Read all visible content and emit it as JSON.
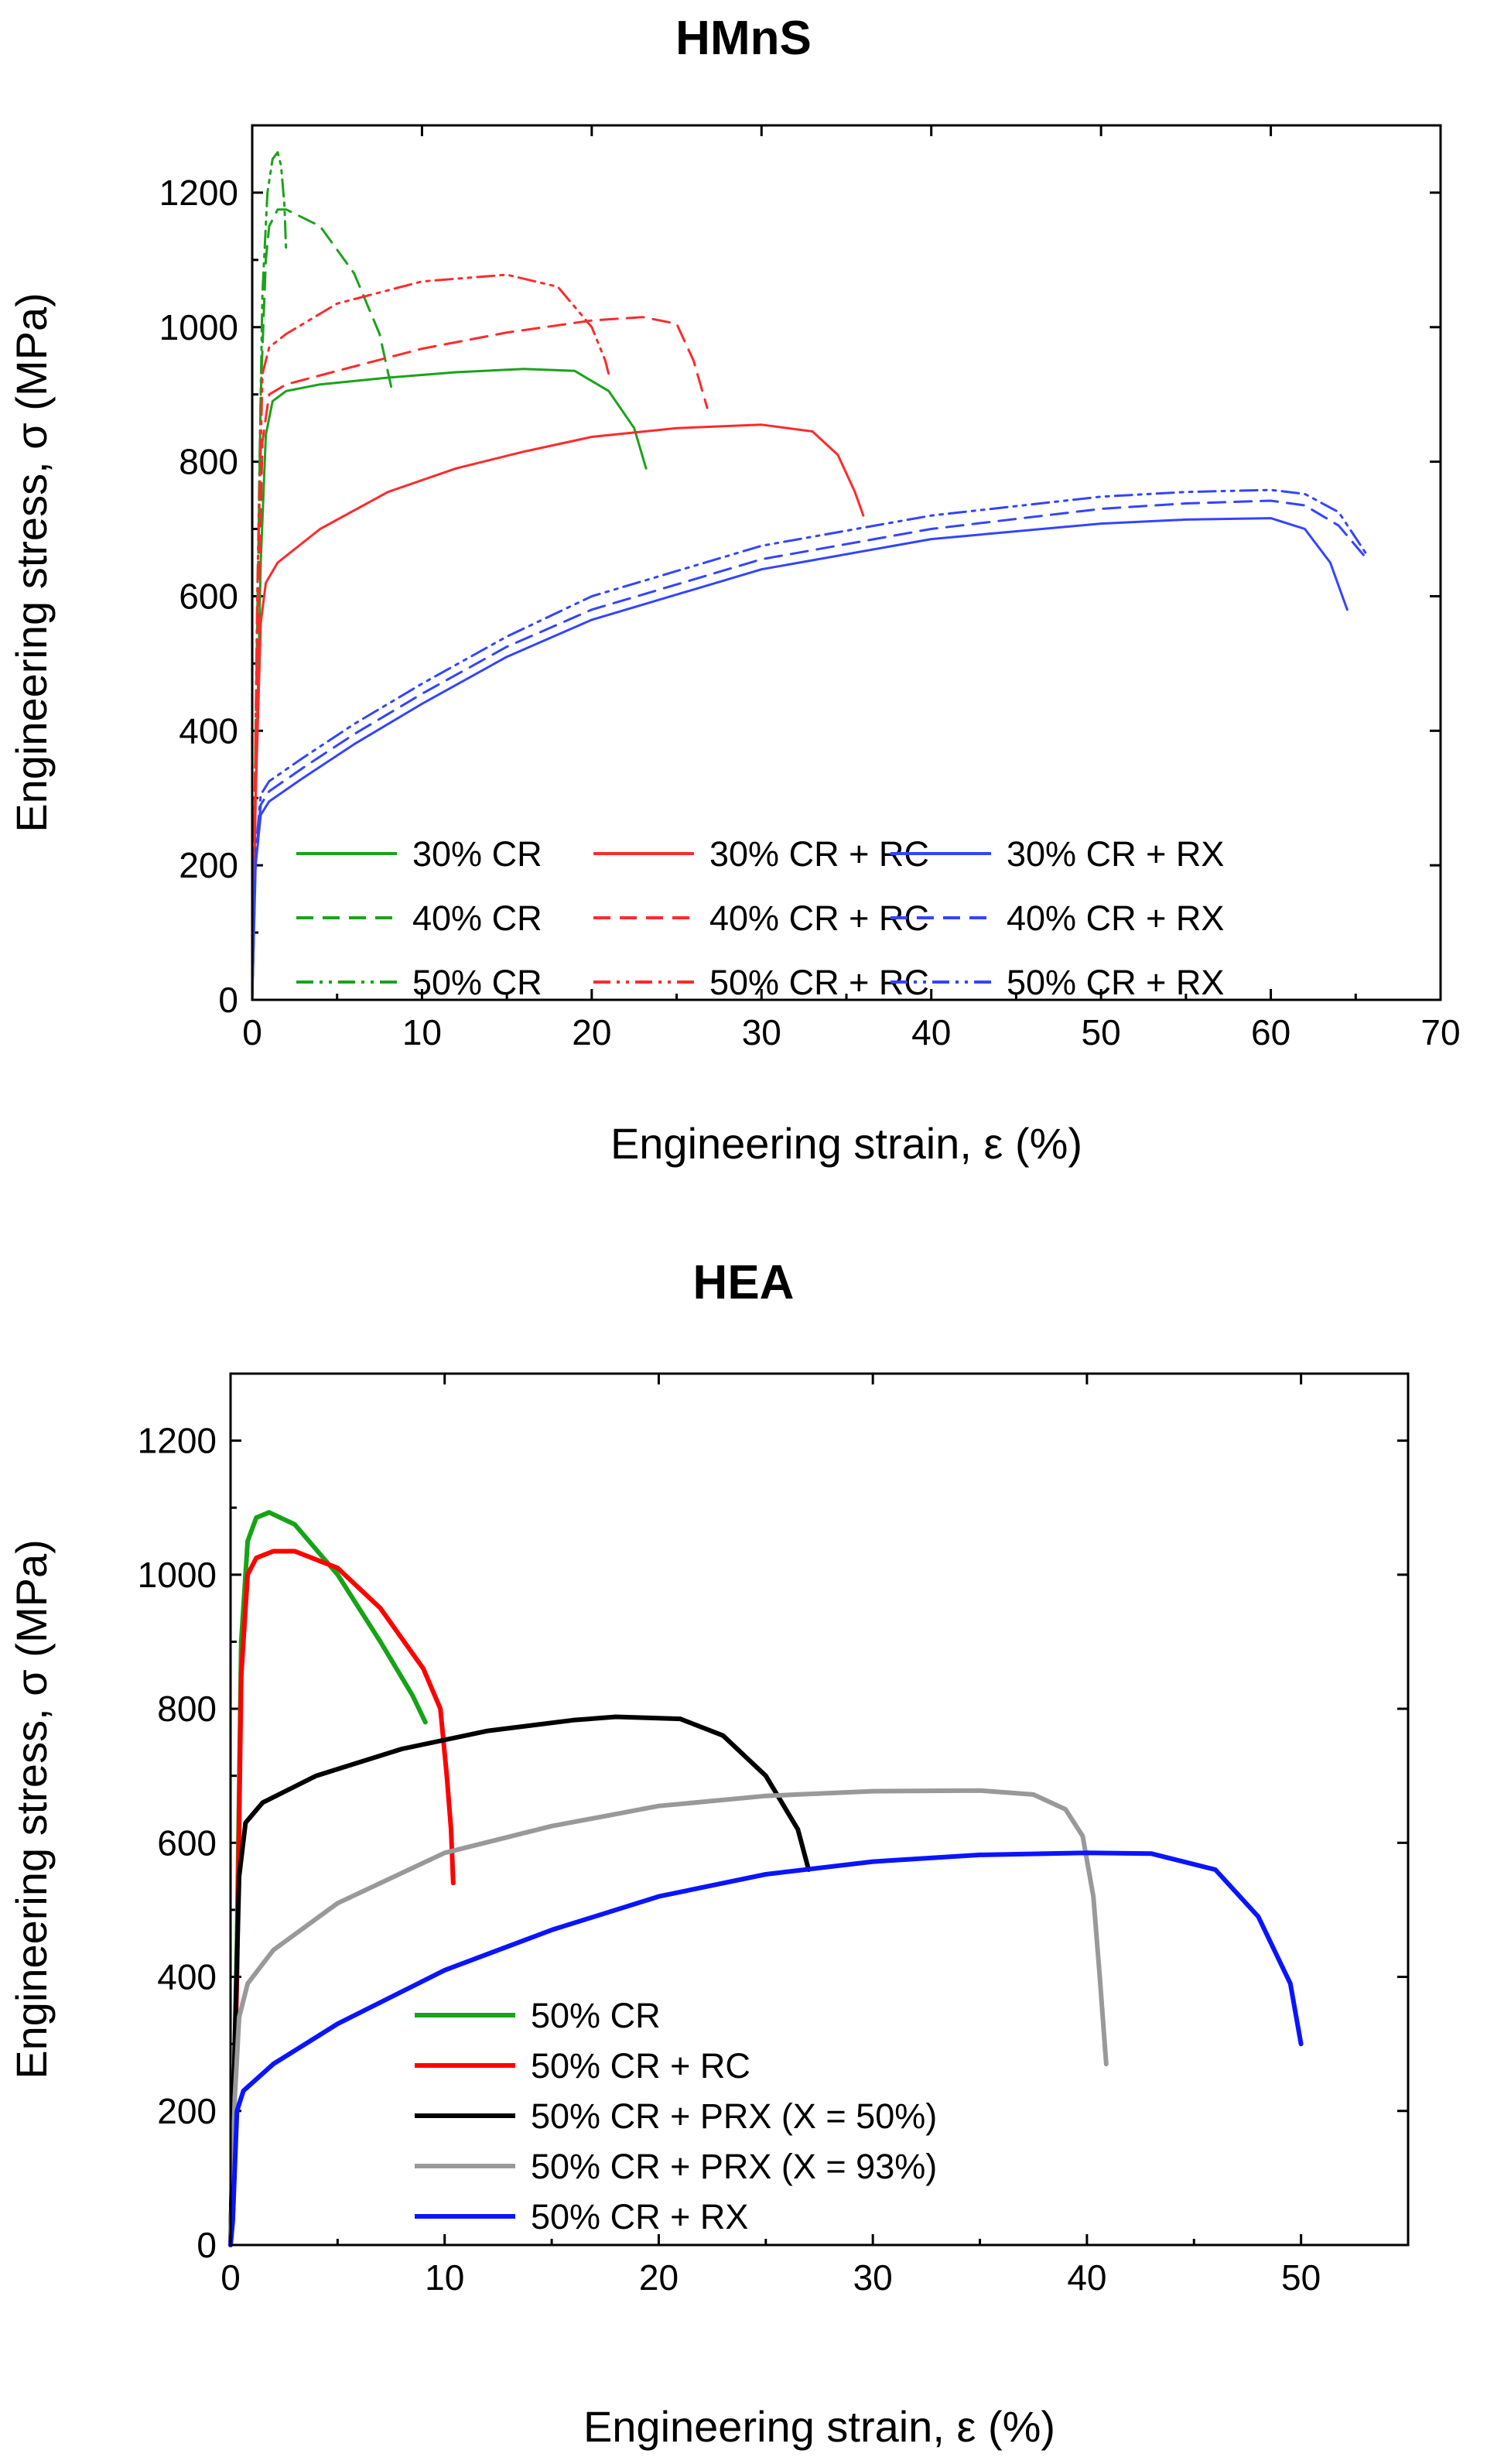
{
  "chart_data": [
    {
      "type": "line",
      "title": "HMnS",
      "xlabel": "Engineering strain, ε (%)",
      "ylabel": "Engineering stress, σ (MPa)",
      "xlim": [
        0,
        70
      ],
      "ylim": [
        0,
        1300
      ],
      "xticks": [
        0,
        10,
        20,
        30,
        40,
        50,
        60,
        70
      ],
      "yticks": [
        0,
        200,
        400,
        600,
        800,
        1000,
        1200
      ],
      "legend_layout": "3 columns, lower-left",
      "series": [
        {
          "name": "30% CR",
          "color": "#1aa31a",
          "style": "solid",
          "x": [
            0,
            0.2,
            0.5,
            0.8,
            1.2,
            2,
            4,
            8,
            12,
            16,
            19,
            21,
            22.5,
            23.2
          ],
          "y": [
            0,
            300,
            650,
            840,
            890,
            905,
            915,
            925,
            933,
            938,
            935,
            905,
            850,
            790
          ]
        },
        {
          "name": "40% CR",
          "color": "#1aa31a",
          "style": "dashed",
          "x": [
            0,
            0.2,
            0.5,
            0.8,
            1.0,
            1.5,
            2,
            4,
            6,
            7.5,
            8.2
          ],
          "y": [
            0,
            400,
            900,
            1100,
            1150,
            1175,
            1175,
            1150,
            1080,
            990,
            910
          ]
        },
        {
          "name": "50% CR",
          "color": "#1aa31a",
          "style": "dashdotdot",
          "x": [
            0,
            0.3,
            0.6,
            0.9,
            1.2,
            1.5,
            1.7,
            1.9,
            2.0
          ],
          "y": [
            0,
            600,
            1050,
            1200,
            1250,
            1260,
            1240,
            1180,
            1110
          ]
        },
        {
          "name": "30% CR + RC",
          "color": "#ff2a2a",
          "style": "solid",
          "x": [
            0,
            0.2,
            0.5,
            0.8,
            1.5,
            4,
            8,
            12,
            16,
            20,
            25,
            30,
            33,
            34.5,
            35.5,
            36
          ],
          "y": [
            0,
            300,
            560,
            620,
            650,
            700,
            755,
            790,
            815,
            837,
            850,
            855,
            845,
            810,
            755,
            720
          ]
        },
        {
          "name": "40% CR + RC",
          "color": "#ff2a2a",
          "style": "dashed",
          "x": [
            0,
            0.3,
            0.6,
            1,
            2,
            5,
            10,
            15,
            20,
            23,
            25,
            26,
            26.8
          ],
          "y": [
            0,
            500,
            830,
            900,
            915,
            935,
            968,
            992,
            1010,
            1015,
            1005,
            950,
            880
          ]
        },
        {
          "name": "50% CR + RC",
          "color": "#ff2a2a",
          "style": "dashdotdot",
          "x": [
            0,
            0.3,
            0.6,
            1,
            2,
            5,
            10,
            15,
            18,
            20,
            20.8,
            21
          ],
          "y": [
            0,
            600,
            930,
            970,
            990,
            1035,
            1068,
            1078,
            1060,
            1000,
            950,
            930
          ]
        },
        {
          "name": "30% CR + RX",
          "color": "#3344ff",
          "style": "solid",
          "x": [
            0,
            0.2,
            0.5,
            1,
            3,
            6,
            10,
            15,
            20,
            30,
            40,
            50,
            55,
            60,
            62,
            63.5,
            64.5
          ],
          "y": [
            0,
            200,
            275,
            295,
            330,
            380,
            440,
            510,
            565,
            640,
            685,
            708,
            714,
            716,
            700,
            650,
            580
          ]
        },
        {
          "name": "40% CR + RX",
          "color": "#3344ff",
          "style": "dashed",
          "x": [
            0,
            0.2,
            0.5,
            1,
            3,
            6,
            10,
            15,
            20,
            30,
            40,
            50,
            55,
            60,
            62,
            64,
            65.5
          ],
          "y": [
            0,
            210,
            290,
            310,
            345,
            395,
            455,
            525,
            580,
            655,
            700,
            730,
            738,
            742,
            735,
            705,
            660
          ]
        },
        {
          "name": "50% CR + RX",
          "color": "#3344ff",
          "style": "dashdotdot",
          "x": [
            0,
            0.2,
            0.5,
            1,
            3,
            6,
            10,
            15,
            20,
            30,
            40,
            50,
            55,
            60,
            62,
            64,
            65.7
          ],
          "y": [
            0,
            220,
            305,
            325,
            360,
            410,
            470,
            540,
            600,
            675,
            720,
            748,
            755,
            758,
            752,
            725,
            660
          ]
        }
      ]
    },
    {
      "type": "line",
      "title": "HEA",
      "xlabel": "Engineering strain, ε (%)",
      "ylabel": "Engineering stress, σ (MPa)",
      "xlim": [
        0,
        55
      ],
      "ylim": [
        0,
        1300
      ],
      "xticks": [
        0,
        10,
        20,
        30,
        40,
        50
      ],
      "yticks": [
        0,
        200,
        400,
        600,
        800,
        1000,
        1200
      ],
      "legend_layout": "single column, lower-left",
      "series": [
        {
          "name": "50% CR",
          "color": "#17a317",
          "style": "solid",
          "x": [
            0,
            0.3,
            0.5,
            0.8,
            1.2,
            1.8,
            3,
            5,
            7,
            8.5,
            9.1
          ],
          "y": [
            0,
            450,
            900,
            1050,
            1085,
            1093,
            1075,
            1000,
            900,
            820,
            780
          ]
        },
        {
          "name": "50% CR + RC",
          "color": "#ff0000",
          "style": "solid",
          "x": [
            0,
            0.3,
            0.5,
            0.8,
            1.2,
            2,
            3,
            5,
            7,
            9,
            9.8,
            10.1,
            10.3,
            10.4
          ],
          "y": [
            0,
            400,
            850,
            1000,
            1025,
            1035,
            1035,
            1010,
            950,
            860,
            800,
            700,
            620,
            540
          ]
        },
        {
          "name": "50% CR + PRX (X = 50%)",
          "color": "#000000",
          "style": "solid",
          "x": [
            0,
            0.2,
            0.4,
            0.7,
            1.5,
            4,
            8,
            12,
            16,
            18,
            21,
            23,
            25,
            26.5,
            27
          ],
          "y": [
            0,
            300,
            550,
            630,
            660,
            700,
            740,
            767,
            783,
            788,
            785,
            760,
            700,
            620,
            560
          ]
        },
        {
          "name": "50% CR + PRX (X = 93%)",
          "color": "#999999",
          "style": "solid",
          "x": [
            0,
            0.2,
            0.4,
            0.8,
            2,
            5,
            10,
            15,
            20,
            25,
            30,
            35,
            37.5,
            39,
            39.8,
            40.3,
            40.6,
            40.9
          ],
          "y": [
            0,
            220,
            340,
            390,
            440,
            510,
            585,
            625,
            655,
            670,
            677,
            678,
            672,
            650,
            610,
            520,
            400,
            270
          ]
        },
        {
          "name": "50% CR + RX",
          "color": "#0a14ff",
          "style": "solid",
          "x": [
            0,
            0.1,
            0.3,
            0.6,
            2,
            5,
            10,
            15,
            20,
            25,
            30,
            35,
            40,
            43,
            46,
            48,
            49.5,
            50
          ],
          "y": [
            0,
            35,
            200,
            230,
            270,
            330,
            410,
            470,
            520,
            553,
            572,
            582,
            585,
            584,
            560,
            490,
            390,
            300
          ]
        }
      ]
    }
  ]
}
